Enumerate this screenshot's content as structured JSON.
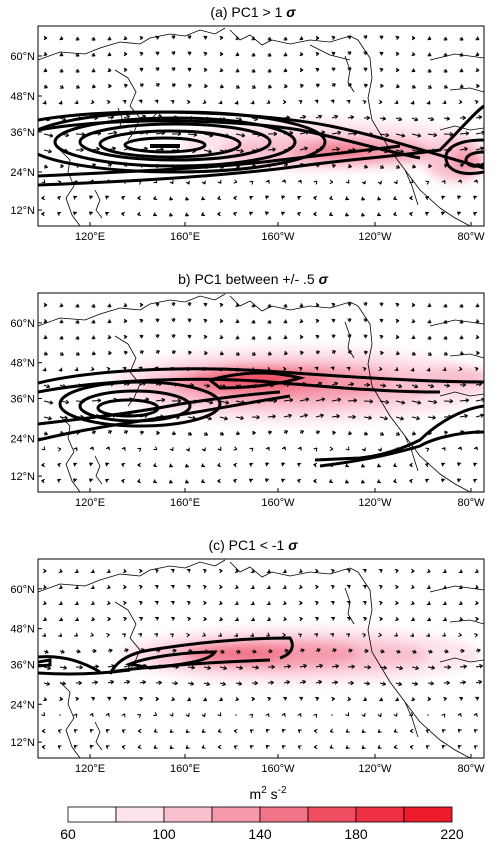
{
  "panels": [
    {
      "title": "(a) PC1 > 1",
      "sigma": "σ"
    },
    {
      "title": "b) PC1 between +/- .5",
      "sigma": "σ"
    },
    {
      "title": "(c) PC1 < -1",
      "sigma": "σ"
    }
  ],
  "axes": {
    "lat_labels": [
      "60°N",
      "48°N",
      "36°N",
      "24°N",
      "12°N"
    ],
    "lon_labels": [
      "120°E",
      "160°E",
      "160°W",
      "120°W",
      "80°W"
    ]
  },
  "colorbar": {
    "unit_base": "m",
    "unit_exp1": "2",
    "unit_mid": " s",
    "unit_exp2": "-2",
    "tick_labels": [
      "60",
      "100",
      "140",
      "180",
      "220"
    ],
    "colors": [
      "#ffffff",
      "#fde3ec",
      "#f9c0cf",
      "#f59aab",
      "#f27489",
      "#ef4d62",
      "#ee2f44",
      "#ee1b2d"
    ]
  },
  "chart_data": [
    {
      "type": "heatmap",
      "title": "(a) PC1 > 1σ",
      "xlim": [
        "100°E",
        "75°W"
      ],
      "ylim": [
        8,
        70
      ],
      "x_ticks": [
        "120°E",
        "160°E",
        "160°W",
        "120°W",
        "80°W"
      ],
      "y_ticks": [
        "12°N",
        "24°N",
        "36°N",
        "48°N",
        "60°N"
      ],
      "shading": "eddy kinetic energy (m² s⁻²), maxima near 30–36°N over central and eastern Pacific",
      "contours": "strong jet core centered ~32°N 155°E with closed contours",
      "vectors": "wind vectors overlaid"
    },
    {
      "type": "heatmap",
      "title": "b) PC1 between +/- .5σ",
      "xlim": [
        "100°E",
        "75°W"
      ],
      "ylim": [
        8,
        70
      ],
      "x_ticks": [
        "120°E",
        "160°E",
        "160°W",
        "120°W",
        "80°W"
      ],
      "y_ticks": [
        "12°N",
        "24°N",
        "36°N",
        "48°N",
        "60°N"
      ],
      "shading": "maxima near 40–45°N 170°W",
      "contours": "jet core ~35°N 145°E extending east"
    },
    {
      "type": "heatmap",
      "title": "(c) PC1 < -1σ",
      "xlim": [
        "100°E",
        "75°W"
      ],
      "ylim": [
        8,
        70
      ],
      "x_ticks": [
        "120°E",
        "160°E",
        "160°W",
        "120°W",
        "80°W"
      ],
      "y_ticks": [
        "12°N",
        "24°N",
        "36°N",
        "48°N",
        "60°N"
      ],
      "shading": "maxima near 40°N 170°E–170°W",
      "contours": "weak jet ~38°N 150°E–160°W"
    }
  ]
}
